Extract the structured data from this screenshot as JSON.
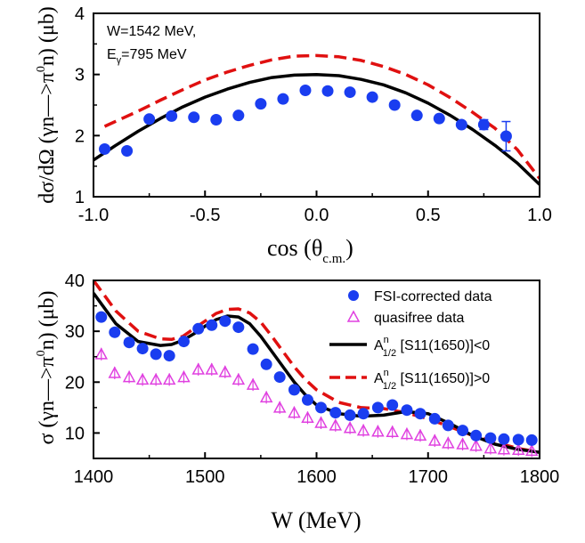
{
  "colors": {
    "data": "#1a3df0",
    "quasi": "#e040e0",
    "neg": "#000000",
    "pos": "#e01010"
  },
  "chart_data": [
    {
      "type": "scatter",
      "annotation": {
        "line1": "W=1542 MeV,",
        "line2_main": "E",
        "line2_sub": "γ",
        "line2_rest": "=795 MeV"
      },
      "xlabel": "cos (θ",
      "xlabel_sub": "c.m.",
      "xlabel_end": ")",
      "ylabel": "dσ/dΩ (γn—>π",
      "ylabel_sup": "0",
      "ylabel_end": "n) (μb)",
      "xlim": [
        -1.0,
        1.0
      ],
      "ylim": [
        1,
        4
      ],
      "xticks": [
        "-1.0",
        "-0.5",
        "0.0",
        "0.5",
        "1.0"
      ],
      "xtick_values": [
        -1.0,
        -0.5,
        0.0,
        0.5,
        1.0
      ],
      "yticks": [
        "1",
        "2",
        "3",
        "4"
      ],
      "ytick_values": [
        1,
        2,
        3,
        4
      ],
      "data_points": {
        "x": [
          -0.95,
          -0.85,
          -0.75,
          -0.65,
          -0.55,
          -0.45,
          -0.35,
          -0.25,
          -0.15,
          -0.05,
          0.05,
          0.15,
          0.25,
          0.35,
          0.45,
          0.55,
          0.65,
          0.75,
          0.85
        ],
        "y": [
          1.78,
          1.75,
          2.27,
          2.32,
          2.3,
          2.26,
          2.33,
          2.52,
          2.6,
          2.74,
          2.73,
          2.71,
          2.63,
          2.5,
          2.33,
          2.28,
          2.18,
          2.18,
          1.99
        ],
        "err": [
          0,
          0,
          0,
          0,
          0,
          0,
          0,
          0,
          0,
          0,
          0,
          0,
          0,
          0,
          0,
          0,
          0,
          0.08,
          0.24
        ]
      },
      "curve_solid": {
        "x": [
          -1.0,
          -0.9,
          -0.8,
          -0.7,
          -0.6,
          -0.5,
          -0.4,
          -0.3,
          -0.2,
          -0.1,
          0.0,
          0.1,
          0.2,
          0.3,
          0.4,
          0.5,
          0.6,
          0.7,
          0.8,
          0.9,
          1.0
        ],
        "y": [
          1.6,
          1.84,
          2.07,
          2.28,
          2.47,
          2.63,
          2.76,
          2.87,
          2.95,
          2.99,
          3.0,
          2.98,
          2.92,
          2.83,
          2.7,
          2.53,
          2.33,
          2.1,
          1.84,
          1.55,
          1.2
        ]
      },
      "curve_dashed": {
        "x": [
          -0.95,
          -0.8,
          -0.7,
          -0.6,
          -0.5,
          -0.4,
          -0.3,
          -0.2,
          -0.1,
          0.0,
          0.1,
          0.2,
          0.3,
          0.4,
          0.5,
          0.6,
          0.7,
          0.8,
          0.9,
          1.0
        ],
        "y": [
          2.15,
          2.4,
          2.58,
          2.75,
          2.91,
          3.04,
          3.15,
          3.24,
          3.3,
          3.31,
          3.29,
          3.23,
          3.13,
          3.0,
          2.83,
          2.62,
          2.38,
          2.12,
          1.77,
          1.3
        ]
      }
    },
    {
      "type": "scatter",
      "xlabel": "W (MeV)",
      "ylabel": "σ (γn—>π",
      "ylabel_sup": "0",
      "ylabel_end": "n) (μb)",
      "xlim": [
        1400,
        1800
      ],
      "ylim": [
        5,
        40
      ],
      "xticks": [
        "1400",
        "1500",
        "1600",
        "1700",
        "1800"
      ],
      "xtick_values": [
        1400,
        1500,
        1600,
        1700,
        1800
      ],
      "yticks": [
        "10",
        "20",
        "30",
        "40"
      ],
      "ytick_values": [
        10,
        20,
        30,
        40
      ],
      "legend_position": "top-right",
      "legend": {
        "fsi": "FSI-corrected data",
        "quasi": "quasifree data",
        "neg_main": "A",
        "neg_sup": "n",
        "neg_sub": "1/2",
        "neg_rest": " [S11(1650)]<0",
        "pos_main": "A",
        "pos_sup": "n",
        "pos_sub": "1/2",
        "pos_rest": " [S11(1650)]>0"
      },
      "fsi_data": {
        "x": [
          1407,
          1419,
          1432,
          1444,
          1456,
          1468,
          1481,
          1494,
          1506,
          1518,
          1530,
          1543,
          1555,
          1567,
          1580,
          1592,
          1604,
          1617,
          1630,
          1642,
          1655,
          1668,
          1681,
          1693,
          1706,
          1718,
          1731,
          1743,
          1756,
          1768,
          1781,
          1793
        ],
        "y": [
          32.8,
          29.8,
          27.8,
          26.6,
          25.5,
          25.2,
          28.0,
          30.5,
          31.2,
          32.0,
          30.8,
          26.5,
          23.5,
          21.0,
          18.5,
          16.5,
          15.0,
          14.0,
          13.5,
          13.8,
          15.0,
          15.5,
          14.5,
          13.8,
          12.8,
          11.5,
          10.5,
          9.5,
          9.0,
          8.8,
          8.7,
          8.6
        ]
      },
      "quasi_data": {
        "x": [
          1407,
          1419,
          1432,
          1444,
          1456,
          1468,
          1481,
          1494,
          1506,
          1518,
          1530,
          1543,
          1555,
          1567,
          1580,
          1592,
          1604,
          1617,
          1630,
          1642,
          1655,
          1668,
          1681,
          1693,
          1706,
          1718,
          1731,
          1743,
          1756,
          1768,
          1781,
          1793
        ],
        "y": [
          25.5,
          21.8,
          21.0,
          20.5,
          20.5,
          20.5,
          21.0,
          22.5,
          22.5,
          22.0,
          20.5,
          19.5,
          17.0,
          15.0,
          14.0,
          13.0,
          12.0,
          11.5,
          11.0,
          10.5,
          10.3,
          10.2,
          9.8,
          9.5,
          8.5,
          8.0,
          7.8,
          7.5,
          7.0,
          6.8,
          6.7,
          6.5
        ]
      },
      "curve_neg": {
        "x": [
          1400,
          1420,
          1440,
          1460,
          1470,
          1480,
          1490,
          1500,
          1510,
          1520,
          1530,
          1540,
          1550,
          1560,
          1570,
          1580,
          1590,
          1600,
          1620,
          1640,
          1660,
          1680,
          1700,
          1720,
          1740,
          1760,
          1780,
          1800
        ],
        "y": [
          37.5,
          31.5,
          28.0,
          27.2,
          27.4,
          28.2,
          29.5,
          31.0,
          32.3,
          33.0,
          32.8,
          31.5,
          29.0,
          26.0,
          23.0,
          20.0,
          17.5,
          15.5,
          13.8,
          13.3,
          13.5,
          14.2,
          13.8,
          11.8,
          9.5,
          7.8,
          6.8,
          6.2
        ]
      },
      "curve_pos": {
        "x": [
          1400,
          1420,
          1440,
          1460,
          1470,
          1480,
          1490,
          1500,
          1510,
          1520,
          1530,
          1540,
          1550,
          1560,
          1570,
          1580,
          1590,
          1600,
          1620,
          1640,
          1660,
          1680,
          1700,
          1720,
          1740,
          1760,
          1780,
          1800
        ],
        "y": [
          40.0,
          34.0,
          30.0,
          28.5,
          28.4,
          29.0,
          30.5,
          32.0,
          33.5,
          34.3,
          34.4,
          33.6,
          31.8,
          29.0,
          26.0,
          23.0,
          20.5,
          18.5,
          16.0,
          15.0,
          14.8,
          14.0,
          12.8,
          11.2,
          9.5,
          8.2,
          7.0,
          6.2
        ]
      }
    }
  ]
}
